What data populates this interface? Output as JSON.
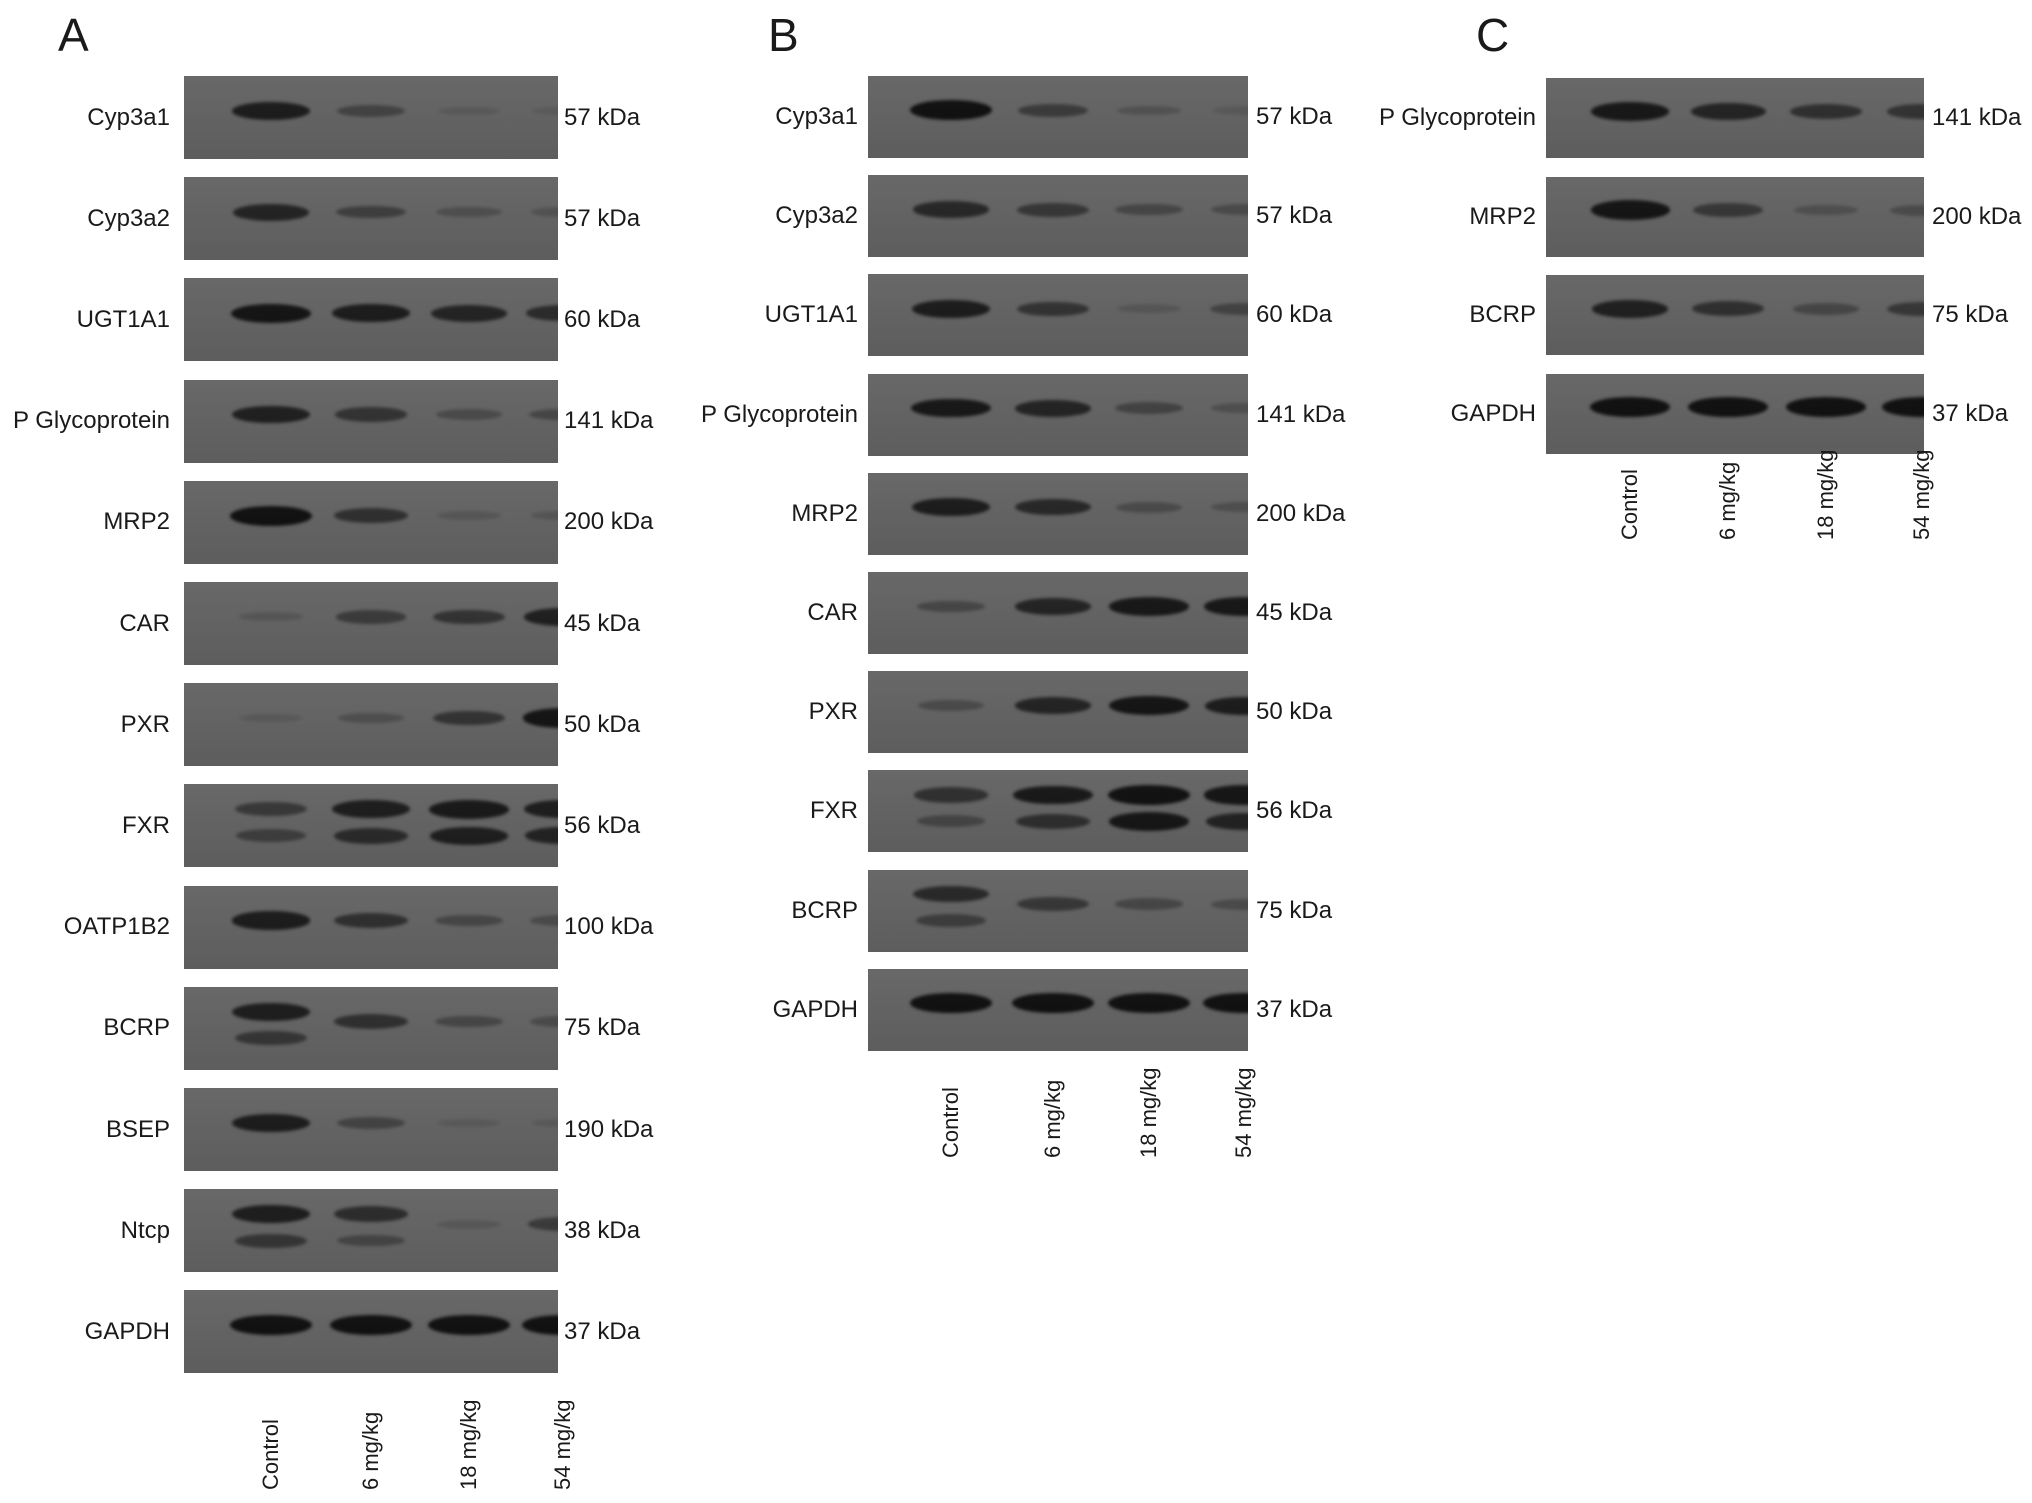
{
  "lanes": [
    "Control",
    "6 mg/kg",
    "18 mg/kg",
    "54 mg/kg"
  ],
  "panels": [
    {
      "letter": "A",
      "rows": [
        {
          "label": "Cyp3a1",
          "mw": "57 kDa",
          "bands": [
            [
              0.85
            ],
            [
              0.35
            ],
            [
              0.05
            ],
            [
              0.03
            ]
          ]
        },
        {
          "label": "Cyp3a2",
          "mw": "57 kDa",
          "bands": [
            [
              0.75
            ],
            [
              0.4
            ],
            [
              0.2
            ],
            [
              0.15
            ]
          ]
        },
        {
          "label": "UGT1A1",
          "mw": "60 kDa",
          "bands": [
            [
              0.95
            ],
            [
              0.85
            ],
            [
              0.75
            ],
            [
              0.65
            ]
          ]
        },
        {
          "label": "P Glycoprotein",
          "mw": "141 kDa",
          "bands": [
            [
              0.8
            ],
            [
              0.55
            ],
            [
              0.25
            ],
            [
              0.3
            ]
          ]
        },
        {
          "label": "MRP2",
          "mw": "200 kDa",
          "bands": [
            [
              1.0
            ],
            [
              0.6
            ],
            [
              0.1
            ],
            [
              0.12
            ]
          ]
        },
        {
          "label": "CAR",
          "mw": "45 kDa",
          "bands": [
            [
              0.1
            ],
            [
              0.45
            ],
            [
              0.55
            ],
            [
              0.8
            ]
          ]
        },
        {
          "label": "PXR",
          "mw": "50 kDa",
          "bands": [
            [
              0.05
            ],
            [
              0.2
            ],
            [
              0.55
            ],
            [
              0.95
            ]
          ]
        },
        {
          "label": "FXR",
          "mw": "56 kDa",
          "bands": [
            [
              0.5,
              0.4
            ],
            [
              0.85,
              0.65
            ],
            [
              0.9,
              0.8
            ],
            [
              0.85,
              0.75
            ]
          ]
        },
        {
          "label": "OATP1B2",
          "mw": "100 kDa",
          "bands": [
            [
              0.85
            ],
            [
              0.6
            ],
            [
              0.3
            ],
            [
              0.25
            ]
          ]
        },
        {
          "label": "BCRP",
          "mw": "75 kDa",
          "bands": [
            [
              0.85,
              0.5
            ],
            [
              0.6
            ],
            [
              0.3
            ],
            [
              0.25
            ]
          ]
        },
        {
          "label": "BSEP",
          "mw": "190 kDa",
          "bands": [
            [
              0.85
            ],
            [
              0.35
            ],
            [
              0.05
            ],
            [
              0.05
            ]
          ]
        },
        {
          "label": "Ntcp",
          "mw": "38 kDa",
          "bands": [
            [
              0.85,
              0.5
            ],
            [
              0.65,
              0.3
            ],
            [
              0.08
            ],
            [
              0.45
            ]
          ]
        },
        {
          "label": "GAPDH",
          "mw": "37 kDa",
          "bands": [
            [
              1.0
            ],
            [
              1.0
            ],
            [
              1.0
            ],
            [
              1.0
            ]
          ]
        }
      ]
    },
    {
      "letter": "B",
      "rows": [
        {
          "label": "Cyp3a1",
          "mw": "57 kDa",
          "bands": [
            [
              1.0
            ],
            [
              0.45
            ],
            [
              0.15
            ],
            [
              0.05
            ]
          ]
        },
        {
          "label": "Cyp3a2",
          "mw": "57 kDa",
          "bands": [
            [
              0.7
            ],
            [
              0.5
            ],
            [
              0.3
            ],
            [
              0.25
            ]
          ]
        },
        {
          "label": "UGT1A1",
          "mw": "60 kDa",
          "bands": [
            [
              0.85
            ],
            [
              0.55
            ],
            [
              0.1
            ],
            [
              0.35
            ]
          ]
        },
        {
          "label": "P Glycoprotein",
          "mw": "141 kDa",
          "bands": [
            [
              0.9
            ],
            [
              0.75
            ],
            [
              0.35
            ],
            [
              0.2
            ]
          ]
        },
        {
          "label": "MRP2",
          "mw": "200 kDa",
          "bands": [
            [
              0.85
            ],
            [
              0.7
            ],
            [
              0.25
            ],
            [
              0.2
            ]
          ]
        },
        {
          "label": "CAR",
          "mw": "45 kDa",
          "bands": [
            [
              0.3
            ],
            [
              0.75
            ],
            [
              0.9
            ],
            [
              0.9
            ]
          ]
        },
        {
          "label": "PXR",
          "mw": "50 kDa",
          "bands": [
            [
              0.25
            ],
            [
              0.75
            ],
            [
              0.95
            ],
            [
              0.85
            ]
          ]
        },
        {
          "label": "FXR",
          "mw": "56 kDa",
          "bands": [
            [
              0.6,
              0.3
            ],
            [
              0.9,
              0.6
            ],
            [
              1.0,
              0.9
            ],
            [
              0.95,
              0.75
            ]
          ]
        },
        {
          "label": "BCRP",
          "mw": "75 kDa",
          "bands": [
            [
              0.7,
              0.4
            ],
            [
              0.5
            ],
            [
              0.3
            ],
            [
              0.25
            ]
          ]
        },
        {
          "label": "GAPDH",
          "mw": "37 kDa",
          "bands": [
            [
              1.0
            ],
            [
              1.0
            ],
            [
              1.0
            ],
            [
              1.0
            ]
          ]
        }
      ]
    },
    {
      "letter": "C",
      "rows": [
        {
          "label": "P Glycoprotein",
          "mw": "141 kDa",
          "bands": [
            [
              0.9
            ],
            [
              0.75
            ],
            [
              0.6
            ],
            [
              0.55
            ]
          ]
        },
        {
          "label": "MRP2",
          "mw": "200 kDa",
          "bands": [
            [
              0.95
            ],
            [
              0.5
            ],
            [
              0.2
            ],
            [
              0.25
            ]
          ]
        },
        {
          "label": "BCRP",
          "mw": "75 kDa",
          "bands": [
            [
              0.8
            ],
            [
              0.6
            ],
            [
              0.3
            ],
            [
              0.5
            ]
          ]
        },
        {
          "label": "GAPDH",
          "mw": "37 kDa",
          "bands": [
            [
              1.0
            ],
            [
              1.0
            ],
            [
              1.0
            ],
            [
              1.0
            ]
          ]
        }
      ]
    }
  ]
}
